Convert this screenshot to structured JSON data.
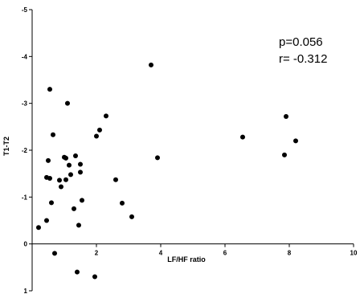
{
  "chart_data": {
    "type": "scatter",
    "xlabel": "LF/HF ratio",
    "ylabel": "T1-T2",
    "xlim": [
      0,
      10
    ],
    "ylim": [
      1,
      -5
    ],
    "y_inverted": true,
    "x_ticks": [
      2,
      4,
      6,
      8,
      10
    ],
    "x_tick_labels": [
      "2",
      "4",
      "6",
      "8",
      "10"
    ],
    "y_ticks": [
      -5,
      -4,
      -3,
      -2,
      -1,
      0,
      1
    ],
    "y_tick_labels": [
      "-5",
      "-4",
      "-3",
      "-2",
      "-1",
      "0",
      "1"
    ],
    "annotations": [
      "p=0.056",
      "r= -0.312"
    ],
    "grid": false,
    "legend": "none",
    "point_color": "#000000",
    "points": [
      {
        "x": 0.2,
        "y": -0.35
      },
      {
        "x": 0.45,
        "y": -0.5
      },
      {
        "x": 0.45,
        "y": -1.42
      },
      {
        "x": 0.5,
        "y": -1.78
      },
      {
        "x": 0.55,
        "y": -1.4
      },
      {
        "x": 0.55,
        "y": -3.3
      },
      {
        "x": 0.6,
        "y": -0.88
      },
      {
        "x": 0.65,
        "y": -2.33
      },
      {
        "x": 0.7,
        "y": 0.2
      },
      {
        "x": 0.85,
        "y": -1.36
      },
      {
        "x": 0.9,
        "y": -1.22
      },
      {
        "x": 1.0,
        "y": -1.85
      },
      {
        "x": 1.05,
        "y": -1.83
      },
      {
        "x": 1.05,
        "y": -1.37
      },
      {
        "x": 1.1,
        "y": -3.0
      },
      {
        "x": 1.15,
        "y": -1.68
      },
      {
        "x": 1.2,
        "y": -1.48
      },
      {
        "x": 1.3,
        "y": -0.75
      },
      {
        "x": 1.35,
        "y": -1.88
      },
      {
        "x": 1.4,
        "y": 0.6
      },
      {
        "x": 1.45,
        "y": -0.4
      },
      {
        "x": 1.5,
        "y": -1.53
      },
      {
        "x": 1.5,
        "y": -1.7
      },
      {
        "x": 1.55,
        "y": -0.93
      },
      {
        "x": 1.95,
        "y": 0.7
      },
      {
        "x": 2.0,
        "y": -2.3
      },
      {
        "x": 2.1,
        "y": -2.43
      },
      {
        "x": 2.3,
        "y": -2.73
      },
      {
        "x": 2.6,
        "y": -1.37
      },
      {
        "x": 2.8,
        "y": -0.87
      },
      {
        "x": 3.1,
        "y": -0.58
      },
      {
        "x": 3.7,
        "y": -3.82
      },
      {
        "x": 3.9,
        "y": -1.84
      },
      {
        "x": 6.55,
        "y": -2.28
      },
      {
        "x": 7.85,
        "y": -1.9
      },
      {
        "x": 7.9,
        "y": -2.72
      },
      {
        "x": 8.2,
        "y": -2.2
      }
    ]
  }
}
